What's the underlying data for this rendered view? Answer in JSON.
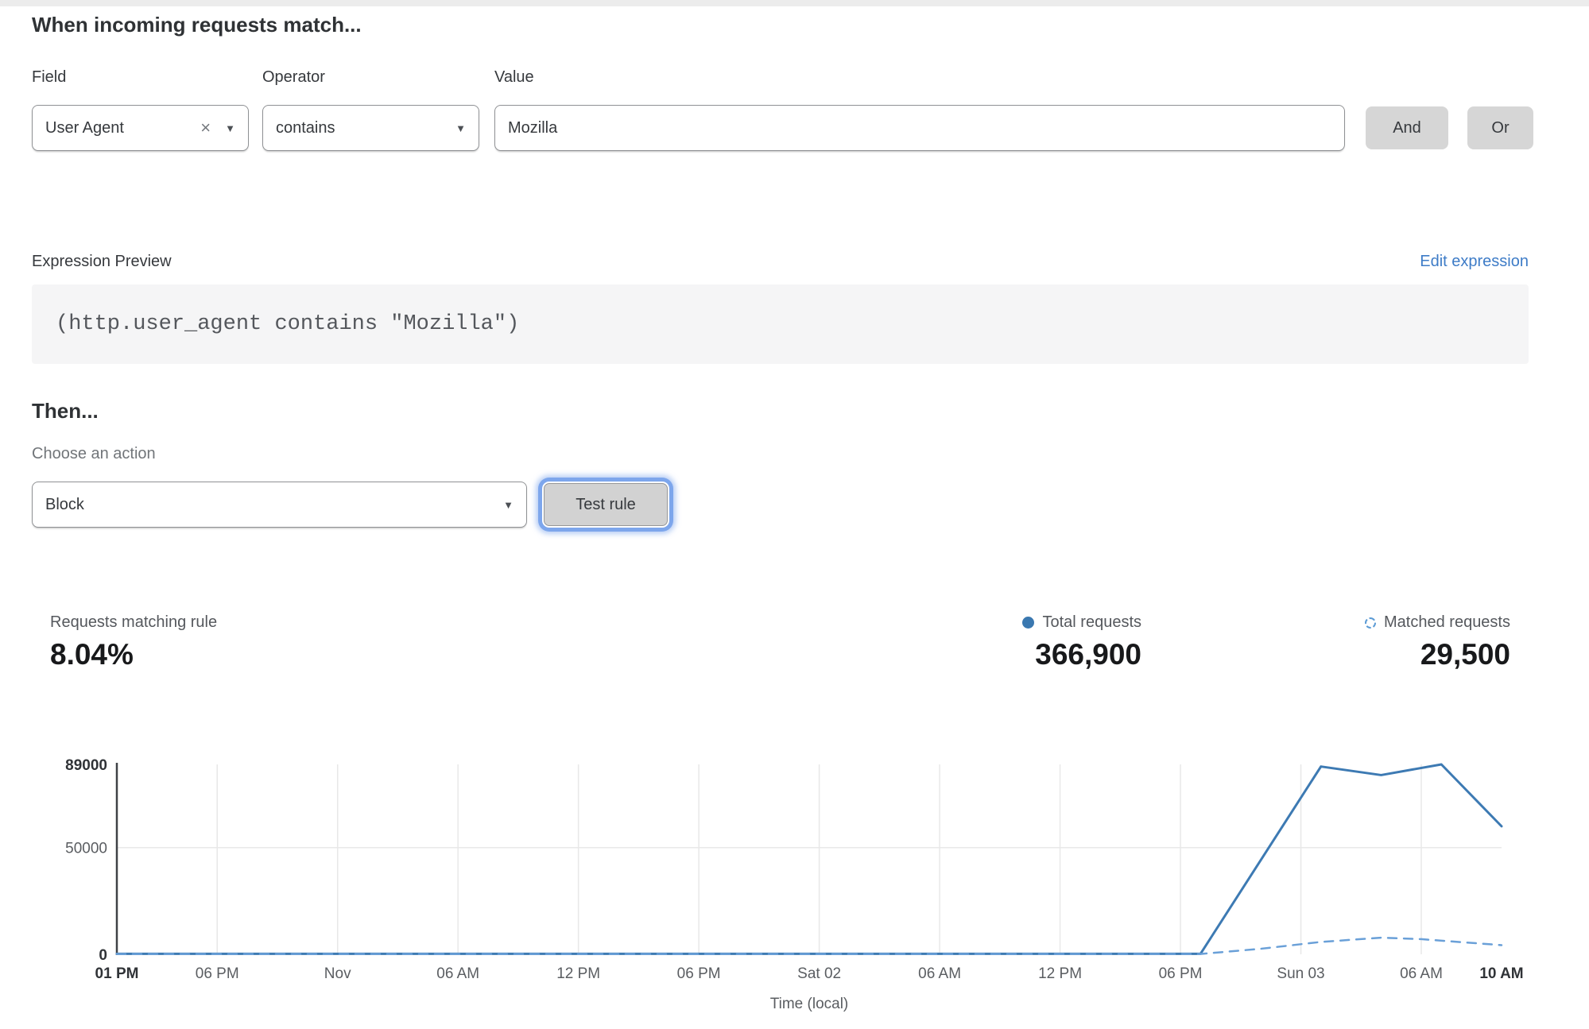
{
  "form": {
    "heading": "When incoming requests match...",
    "field": {
      "label": "Field",
      "value": "User Agent"
    },
    "operator": {
      "label": "Operator",
      "value": "contains"
    },
    "value": {
      "label": "Value",
      "value": "Mozilla"
    },
    "and_label": "And",
    "or_label": "Or"
  },
  "expression": {
    "label": "Expression Preview",
    "edit_link": "Edit expression",
    "code": "(http.user_agent contains \"Mozilla\")"
  },
  "action": {
    "heading": "Then...",
    "label": "Choose an action",
    "value": "Block",
    "test_button": "Test rule"
  },
  "stats": {
    "matching": {
      "label": "Requests matching rule",
      "value": "8.04%"
    },
    "total": {
      "label": "Total requests",
      "value": "366,900"
    },
    "matched": {
      "label": "Matched requests",
      "value": "29,500"
    }
  },
  "colors": {
    "accent_link": "#3e7cc7",
    "focus_ring": "#7da6ec",
    "total_line": "#3d7ab3",
    "matched_line": "#6aa0d8",
    "grid": "#e8e8e8",
    "button_gray": "#d6d6d6"
  },
  "chart_data": {
    "type": "line",
    "title": "",
    "xlabel": "Time (local)",
    "ylabel": "",
    "ylim": [
      0,
      89000
    ],
    "x_span_hours": 69,
    "grid": true,
    "legend_position": "top-right",
    "grid_color": "#e8e8e8",
    "yticks": [
      {
        "value": 0,
        "label": "0",
        "bold": true
      },
      {
        "value": 50000,
        "label": "50000",
        "bold": false
      },
      {
        "value": 89000,
        "label": "89000",
        "bold": true
      }
    ],
    "xticks": [
      {
        "hours": 0,
        "label": "01 PM",
        "bold": true
      },
      {
        "hours": 5,
        "label": "06 PM",
        "bold": false
      },
      {
        "hours": 11,
        "label": "Nov",
        "bold": false
      },
      {
        "hours": 17,
        "label": "06 AM",
        "bold": false
      },
      {
        "hours": 23,
        "label": "12 PM",
        "bold": false
      },
      {
        "hours": 29,
        "label": "06 PM",
        "bold": false
      },
      {
        "hours": 35,
        "label": "Sat 02",
        "bold": false
      },
      {
        "hours": 41,
        "label": "06 AM",
        "bold": false
      },
      {
        "hours": 47,
        "label": "12 PM",
        "bold": false
      },
      {
        "hours": 53,
        "label": "06 PM",
        "bold": false
      },
      {
        "hours": 59,
        "label": "Sun 03",
        "bold": false
      },
      {
        "hours": 65,
        "label": "06 AM",
        "bold": false
      },
      {
        "hours": 69,
        "label": "10 AM",
        "bold": true
      }
    ],
    "series": [
      {
        "name": "Total requests",
        "style": "solid",
        "color": "#3d7ab3",
        "points": [
          [
            0,
            250
          ],
          [
            5,
            250
          ],
          [
            11,
            250
          ],
          [
            17,
            250
          ],
          [
            23,
            250
          ],
          [
            29,
            250
          ],
          [
            35,
            250
          ],
          [
            41,
            250
          ],
          [
            47,
            250
          ],
          [
            54,
            250
          ],
          [
            60,
            88000
          ],
          [
            63,
            84000
          ],
          [
            66,
            89000
          ],
          [
            69,
            60000
          ]
        ]
      },
      {
        "name": "Matched requests",
        "style": "dashed",
        "color": "#6aa0d8",
        "points": [
          [
            0,
            120
          ],
          [
            54,
            150
          ],
          [
            57,
            2600
          ],
          [
            60,
            5800
          ],
          [
            63,
            7800
          ],
          [
            65,
            7100
          ],
          [
            69,
            4300
          ]
        ]
      }
    ]
  }
}
